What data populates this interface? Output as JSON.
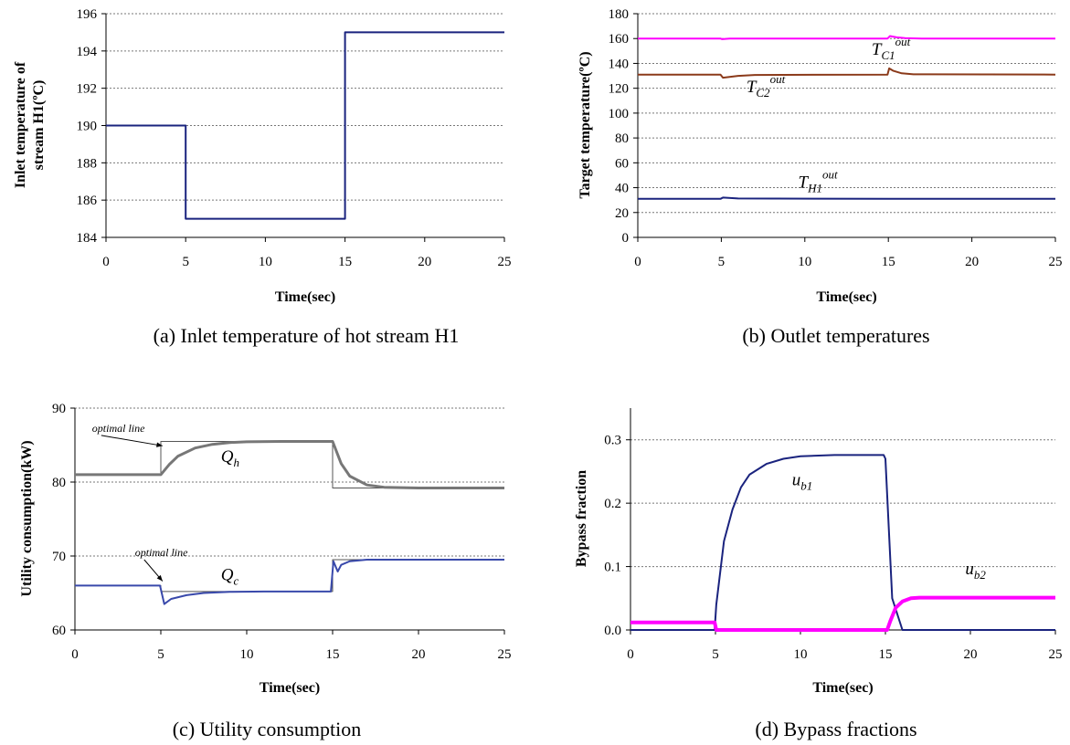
{
  "chart_data": [
    {
      "id": "a",
      "type": "line",
      "caption": "(a) Inlet temperature of hot stream H1",
      "xlabel": "Time(sec)",
      "ylabel_lines": [
        "Inlet temperature of",
        "stream H1(ºC)"
      ],
      "xlim": [
        0,
        25
      ],
      "ylim": [
        184,
        196
      ],
      "xticks": [
        0,
        5,
        10,
        15,
        20,
        25
      ],
      "yticks": [
        184,
        186,
        188,
        190,
        192,
        194,
        196
      ],
      "grid": "horizontal dotted",
      "series": [
        {
          "color": "#1a237e",
          "width": 2,
          "x": [
            0,
            5,
            5,
            15,
            15,
            25
          ],
          "y": [
            190,
            190,
            185,
            185,
            195,
            195
          ]
        }
      ],
      "annotations": []
    },
    {
      "id": "b",
      "type": "line",
      "caption": "(b) Outlet temperatures",
      "xlabel": "Time(sec)",
      "ylabel_lines": [
        "Target temperature(ºC)"
      ],
      "xlim": [
        0,
        25
      ],
      "ylim": [
        0,
        180
      ],
      "xticks": [
        0,
        5,
        10,
        15,
        20,
        25
      ],
      "yticks": [
        0,
        20,
        40,
        60,
        80,
        100,
        120,
        140,
        160,
        180
      ],
      "grid": "horizontal dotted",
      "series": [
        {
          "color": "#ff00ff",
          "width": 2,
          "x": [
            0,
            4.95,
            5.05,
            5.5,
            14.95,
            15.1,
            15.5,
            16,
            17,
            25
          ],
          "y": [
            160,
            160,
            159.5,
            160,
            160,
            162,
            161,
            160.3,
            160,
            160
          ]
        },
        {
          "color": "#8b3a1a",
          "width": 2,
          "x": [
            0,
            4.95,
            5.1,
            6,
            7,
            14.95,
            15.05,
            15.3,
            15.8,
            16.5,
            25
          ],
          "y": [
            131,
            131,
            128.5,
            130,
            130.7,
            131,
            136,
            134,
            132,
            131.2,
            131
          ]
        },
        {
          "color": "#1a237e",
          "width": 2,
          "x": [
            0,
            4.95,
            5.1,
            6,
            15,
            25
          ],
          "y": [
            31,
            31,
            32,
            31.3,
            31,
            31
          ]
        }
      ],
      "annotations": [
        {
          "text": "T",
          "sub": "C1",
          "sup": "out",
          "x": 14.0,
          "y": 147
        },
        {
          "text": "T",
          "sub": "C2",
          "sup": "out",
          "x": 6.5,
          "y": 117
        },
        {
          "text": "T",
          "sub": "H1",
          "sup": "out",
          "x": 9.6,
          "y": 40
        }
      ]
    },
    {
      "id": "c",
      "type": "line",
      "caption": "(c) Utility consumption",
      "xlabel": "Time(sec)",
      "ylabel_lines": [
        "Utility consumption(kW)"
      ],
      "xlim": [
        0,
        25
      ],
      "ylim": [
        60,
        90
      ],
      "xticks": [
        0,
        5,
        10,
        15,
        20,
        25
      ],
      "yticks": [
        60,
        70,
        80,
        90
      ],
      "grid": "horizontal dotted",
      "series": [
        {
          "color": "#555555",
          "width": 1,
          "x": [
            0,
            5,
            5,
            15,
            15,
            25
          ],
          "y": [
            81,
            81,
            85.5,
            85.5,
            79.2,
            79.2
          ]
        },
        {
          "color": "#777777",
          "width": 3,
          "x": [
            0,
            5,
            5.5,
            6,
            7,
            8,
            9,
            10,
            12,
            15,
            15.5,
            16,
            17,
            18,
            20,
            25
          ],
          "y": [
            81,
            81,
            82.4,
            83.5,
            84.6,
            85.1,
            85.35,
            85.45,
            85.5,
            85.5,
            82.5,
            80.8,
            79.6,
            79.3,
            79.2,
            79.2
          ]
        },
        {
          "color": "#555555",
          "width": 1,
          "x": [
            0,
            5,
            5,
            15,
            15,
            25
          ],
          "y": [
            66,
            66,
            65.2,
            65.2,
            69.5,
            69.5
          ]
        },
        {
          "color": "#3949ab",
          "width": 2,
          "x": [
            0,
            4.95,
            5.2,
            5.6,
            6.5,
            7.5,
            9,
            11,
            14.9,
            15.05,
            15.3,
            15.5,
            16,
            17,
            25
          ],
          "y": [
            66,
            66,
            63.5,
            64.2,
            64.7,
            65.0,
            65.15,
            65.2,
            65.2,
            69.3,
            67.9,
            68.8,
            69.3,
            69.5,
            69.5
          ]
        }
      ],
      "annotations": [
        {
          "text": "Q",
          "sub": "h",
          "x": 8.5,
          "y": 82.7
        },
        {
          "text": "Q",
          "sub": "c",
          "x": 8.5,
          "y": 66.7
        }
      ],
      "notes": [
        {
          "text": "optimal line",
          "x": 1.0,
          "y": 86.8,
          "arrow_to": [
            5.1,
            84.9
          ]
        },
        {
          "text": "optimal line",
          "x": 3.5,
          "y": 70.0,
          "arrow_to": [
            5.1,
            66.6
          ]
        }
      ]
    },
    {
      "id": "d",
      "type": "line",
      "caption": "(d) Bypass fractions",
      "xlabel": "Time(sec)",
      "ylabel_lines": [
        "Bypass fraction"
      ],
      "xlim": [
        0,
        25
      ],
      "ylim": [
        0,
        0.35
      ],
      "xticks": [
        0,
        5,
        10,
        15,
        20,
        25
      ],
      "yticks": [
        0.0,
        0.1,
        0.2,
        0.3
      ],
      "ytick_labels": [
        "0.0",
        "0.1",
        "0.2",
        "0.3"
      ],
      "grid": "horizontal dotted",
      "series": [
        {
          "color": "#1a237e",
          "width": 2,
          "x": [
            0,
            4.95,
            5.05,
            5.5,
            6,
            6.5,
            7,
            8,
            9,
            10,
            12,
            14.9,
            15,
            15.4,
            16,
            25
          ],
          "y": [
            0,
            0,
            0.04,
            0.14,
            0.19,
            0.225,
            0.245,
            0.262,
            0.27,
            0.274,
            0.276,
            0.276,
            0.27,
            0.05,
            0,
            0
          ]
        },
        {
          "color": "#ff00ff",
          "width": 4,
          "x": [
            0,
            4.95,
            5.05,
            15.1,
            15.3,
            15.6,
            16,
            16.5,
            17,
            18,
            25
          ],
          "y": [
            0.012,
            0.012,
            0,
            0,
            0.015,
            0.035,
            0.045,
            0.05,
            0.051,
            0.051,
            0.051
          ]
        }
      ],
      "annotations": [
        {
          "text": "u",
          "sub": "b1",
          "x": 9.5,
          "y": 0.228
        },
        {
          "text": "u",
          "sub": "b2",
          "x": 19.7,
          "y": 0.088
        }
      ]
    }
  ]
}
